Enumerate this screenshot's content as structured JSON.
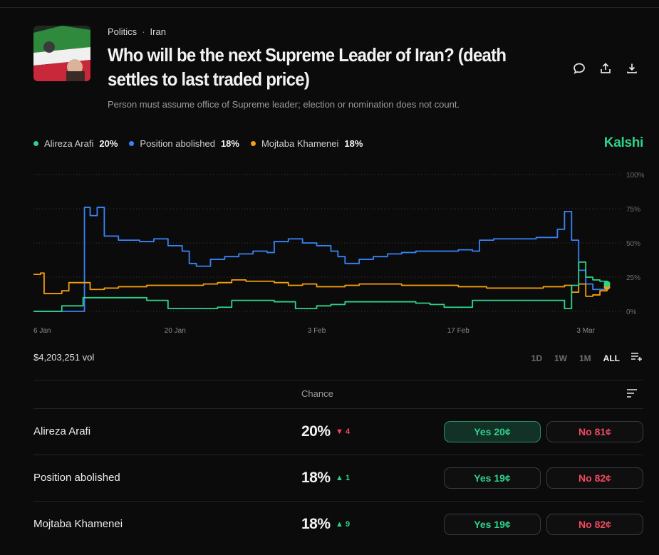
{
  "breadcrumb": {
    "category": "Politics",
    "separator": "·",
    "subcategory": "Iran"
  },
  "title": "Who will be the next Supreme Leader of Iran? (death settles to last traded price)",
  "description": "Person must assume office of Supreme leader; election or nomination does not count.",
  "brand": "Kalshi",
  "legend": [
    {
      "name": "Alireza Arafi",
      "pct": "20%",
      "color": "#2ed38a"
    },
    {
      "name": "Position abolished",
      "pct": "18%",
      "color": "#3b82f6"
    },
    {
      "name": "Mojtaba Khamenei",
      "pct": "18%",
      "color": "#f59e0b"
    }
  ],
  "volume": "$4,203,251 vol",
  "ranges": [
    "1D",
    "1W",
    "1M",
    "ALL"
  ],
  "active_range": "ALL",
  "table": {
    "chance_header": "Chance",
    "rows": [
      {
        "name": "Alireza Arafi",
        "chance": "20%",
        "delta": "4",
        "direction": "down",
        "yes": "Yes 20¢",
        "no": "No 81¢",
        "selected": true
      },
      {
        "name": "Position abolished",
        "chance": "18%",
        "delta": "1",
        "direction": "up",
        "yes": "Yes 19¢",
        "no": "No 82¢",
        "selected": false
      },
      {
        "name": "Mojtaba Khamenei",
        "chance": "18%",
        "delta": "9",
        "direction": "up",
        "yes": "Yes 19¢",
        "no": "No 82¢",
        "selected": false
      }
    ]
  },
  "chart_data": {
    "type": "line",
    "x_ticks": [
      "6 Jan",
      "20 Jan",
      "3 Feb",
      "17 Feb",
      "3 Mar"
    ],
    "y_ticks": [
      "100%",
      "75%",
      "50%",
      "25%",
      "0%"
    ],
    "ylim": [
      0,
      100
    ],
    "grid": true,
    "series": [
      {
        "name": "Position abolished",
        "color": "#3b82f6",
        "points": [
          [
            0,
            0
          ],
          [
            7,
            0
          ],
          [
            7.2,
            76
          ],
          [
            8,
            70
          ],
          [
            9,
            76
          ],
          [
            10,
            55
          ],
          [
            12,
            52
          ],
          [
            15,
            51
          ],
          [
            17,
            53
          ],
          [
            19,
            48
          ],
          [
            21,
            44
          ],
          [
            22,
            35
          ],
          [
            23,
            33
          ],
          [
            24,
            33
          ],
          [
            25,
            38
          ],
          [
            27,
            40
          ],
          [
            29,
            42
          ],
          [
            31,
            44
          ],
          [
            33,
            43
          ],
          [
            34,
            51
          ],
          [
            36,
            53
          ],
          [
            38,
            50
          ],
          [
            40,
            48
          ],
          [
            42,
            44
          ],
          [
            43,
            40
          ],
          [
            44,
            35
          ],
          [
            46,
            38
          ],
          [
            48,
            40
          ],
          [
            50,
            42
          ],
          [
            52,
            43
          ],
          [
            54,
            44
          ],
          [
            56,
            44
          ],
          [
            58,
            44
          ],
          [
            60,
            45
          ],
          [
            62,
            44
          ],
          [
            63,
            52
          ],
          [
            65,
            53
          ],
          [
            67,
            53
          ],
          [
            69,
            53
          ],
          [
            71,
            54
          ],
          [
            73,
            54
          ],
          [
            74,
            60
          ],
          [
            75,
            73
          ],
          [
            76,
            52
          ],
          [
            77,
            30
          ],
          [
            78,
            20
          ],
          [
            79,
            16
          ],
          [
            80,
            16
          ],
          [
            81,
            18
          ]
        ]
      },
      {
        "name": "Mojtaba Khamenei",
        "color": "#f59e0b",
        "points": [
          [
            0,
            27
          ],
          [
            1,
            28
          ],
          [
            1.5,
            13
          ],
          [
            3,
            13
          ],
          [
            4,
            15
          ],
          [
            5,
            21
          ],
          [
            6,
            21
          ],
          [
            7,
            21
          ],
          [
            8,
            16
          ],
          [
            10,
            17
          ],
          [
            12,
            18
          ],
          [
            14,
            18
          ],
          [
            16,
            19
          ],
          [
            18,
            19
          ],
          [
            20,
            19
          ],
          [
            22,
            19
          ],
          [
            24,
            20
          ],
          [
            26,
            21
          ],
          [
            28,
            23
          ],
          [
            30,
            22
          ],
          [
            32,
            22
          ],
          [
            34,
            21
          ],
          [
            36,
            19
          ],
          [
            38,
            20
          ],
          [
            40,
            18
          ],
          [
            42,
            18
          ],
          [
            44,
            19
          ],
          [
            46,
            20
          ],
          [
            48,
            20
          ],
          [
            50,
            20
          ],
          [
            52,
            19
          ],
          [
            54,
            19
          ],
          [
            56,
            19
          ],
          [
            58,
            19
          ],
          [
            60,
            18
          ],
          [
            62,
            18
          ],
          [
            64,
            17
          ],
          [
            66,
            17
          ],
          [
            68,
            17
          ],
          [
            70,
            17
          ],
          [
            72,
            18
          ],
          [
            74,
            18
          ],
          [
            75,
            19
          ],
          [
            76,
            14
          ],
          [
            77,
            20
          ],
          [
            78,
            11
          ],
          [
            79,
            12
          ],
          [
            80,
            15
          ],
          [
            81,
            18
          ]
        ]
      },
      {
        "name": "Alireza Arafi",
        "color": "#2ed38a",
        "points": [
          [
            0,
            0
          ],
          [
            3,
            0
          ],
          [
            4,
            4
          ],
          [
            6,
            4
          ],
          [
            7,
            10
          ],
          [
            12,
            10
          ],
          [
            16,
            8
          ],
          [
            18,
            8
          ],
          [
            19,
            2
          ],
          [
            22,
            2
          ],
          [
            24,
            2
          ],
          [
            26,
            3
          ],
          [
            28,
            8
          ],
          [
            32,
            8
          ],
          [
            34,
            7
          ],
          [
            36,
            7
          ],
          [
            37,
            2
          ],
          [
            40,
            4
          ],
          [
            42,
            5
          ],
          [
            44,
            7
          ],
          [
            48,
            7
          ],
          [
            52,
            7
          ],
          [
            54,
            6
          ],
          [
            56,
            5
          ],
          [
            58,
            3
          ],
          [
            60,
            3
          ],
          [
            62,
            8
          ],
          [
            66,
            8
          ],
          [
            70,
            8
          ],
          [
            74,
            8
          ],
          [
            75,
            2
          ],
          [
            76,
            19
          ],
          [
            77,
            36
          ],
          [
            78,
            25
          ],
          [
            79,
            23
          ],
          [
            80,
            22
          ],
          [
            81,
            20
          ]
        ]
      }
    ]
  }
}
